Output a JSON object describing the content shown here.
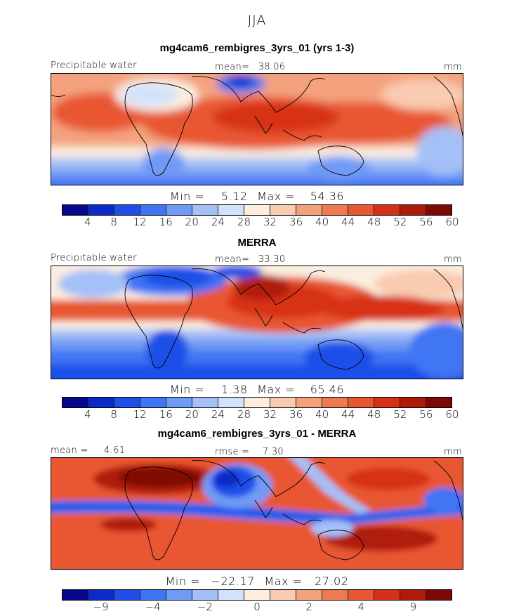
{
  "figure": {
    "title": "JJA"
  },
  "panels": [
    {
      "title": "mg4cam6_rembigres_3yrs_01 (yrs 1-3)",
      "left_label": "Precipitable water",
      "center_label": "mean=",
      "center_value": "38.06",
      "units": "mm",
      "min_label": "Min =",
      "min_value": "5.12",
      "max_label": "Max =",
      "max_value": "54.36",
      "colorbar_labels": [
        "4",
        "8",
        "12",
        "16",
        "20",
        "24",
        "28",
        "32",
        "36",
        "40",
        "44",
        "48",
        "52",
        "56",
        "60"
      ]
    },
    {
      "title": "MERRA",
      "left_label": "Precipitable water",
      "center_label": "mean=",
      "center_value": "33.30",
      "units": "mm",
      "min_label": "Min =",
      "min_value": "1.38",
      "max_label": "Max =",
      "max_value": "65.46",
      "colorbar_labels": [
        "4",
        "8",
        "12",
        "16",
        "20",
        "24",
        "28",
        "32",
        "36",
        "40",
        "44",
        "48",
        "52",
        "56",
        "60"
      ]
    },
    {
      "title": "mg4cam6_rembigres_3yrs_01 - MERRA",
      "left_label": "mean =",
      "left_value": "4.61",
      "center_label": "rmse =",
      "center_value": "7.30",
      "units": "mm",
      "min_label": "Min =",
      "min_value": "−22.17",
      "max_label": "Max =",
      "max_value": "27.02",
      "colorbar_labels": [
        "−9",
        "−4",
        "−2",
        "0",
        "2",
        "4",
        "9"
      ]
    }
  ],
  "colors": {
    "levels_15": [
      "#08088c",
      "#0a2bc8",
      "#1f4fe8",
      "#3f74f4",
      "#6f9af5",
      "#a4c0f7",
      "#d3e2fb",
      "#fbeee0",
      "#f9cbb0",
      "#f4a27e",
      "#ef7a52",
      "#e85632",
      "#d73019",
      "#b01a0c",
      "#7e0806"
    ],
    "levels_diff": [
      "#08088c",
      "#0a2bc8",
      "#1f4fe8",
      "#3f74f4",
      "#6f9af5",
      "#a4c0f7",
      "#d3e2fb",
      "#fbeee0",
      "#f9cbb0",
      "#f4a27e",
      "#ef7a52",
      "#e85632",
      "#d73019",
      "#b01a0c",
      "#7e0806"
    ]
  }
}
